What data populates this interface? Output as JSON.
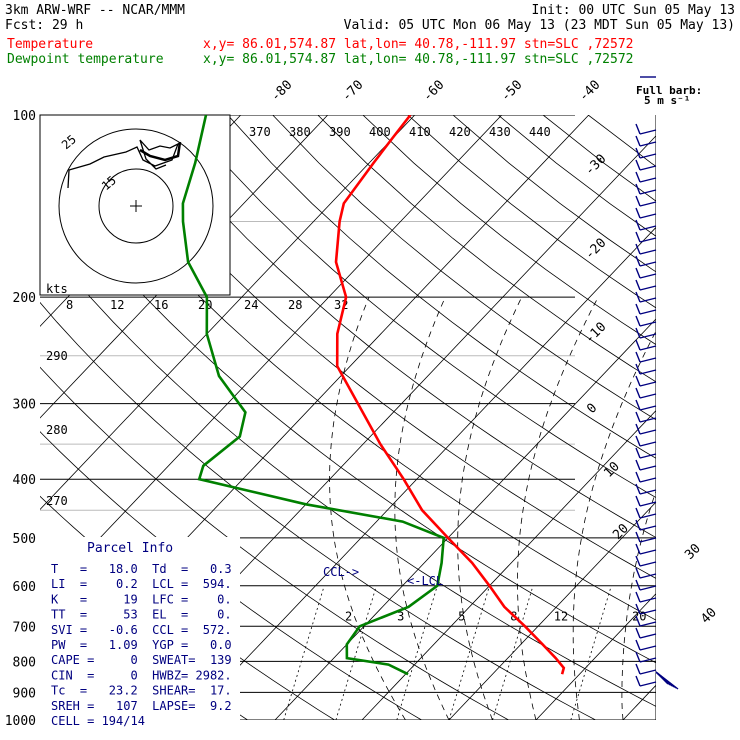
{
  "header": {
    "line1_left": "3km ARW-WRF -- NCAR/MMM",
    "line1_right": "Init: 00 UTC Sun 05 May 13",
    "line2_left": "Fcst:    29 h",
    "line2_right": "Valid: 05 UTC Mon 06 May 13 (23 MDT Sun 05 May 13)",
    "temp_label": "Temperature",
    "dew_label": "Dewpoint temperature",
    "temp_info": "x,y= 86.01,574.87    lat,lon= 40.78,-111.97   stn=SLC ,72572",
    "dew_info": "x,y= 86.01,574.87    lat,lon= 40.78,-111.97   stn=SLC ,72572",
    "colors": {
      "temperature": "#ff0000",
      "dewpoint": "#008000",
      "wind": "#000080",
      "parcel": "#000080"
    }
  },
  "barb_legend": {
    "title": "Full barb:",
    "value": "5 m s⁻¹"
  },
  "parcel_info": {
    "title": "Parcel Info",
    "rows": [
      "T   =   18.0  Td  =   0.3",
      "LI  =    0.2  LCL =  594.",
      "K   =     19  LFC =    0.",
      "TT  =     53  EL  =    0.",
      "SVI =   -0.6  CCL =  572.",
      "PW  =   1.09  YGP =   0.0",
      "CAPE =     0  SWEAT=  139",
      "CIN  =     0  HWBZ= 2982.",
      "Tc  =   23.2  SHEAR=  17.",
      "SREH =   107  LAPSE=  9.2",
      "CELL = 194/14"
    ]
  },
  "markers": {
    "ccl": "CCL->",
    "lcl": "<-LCL"
  },
  "hodograph": {
    "units": "kts",
    "ring_labels": [
      "25",
      "15"
    ]
  },
  "chart_data": {
    "type": "line",
    "diagram": "skew-T log-p",
    "y_axis": {
      "quantity": "pressure",
      "units": "hPa",
      "scale": "log",
      "range": [
        1000,
        100
      ],
      "ticks": [
        100,
        200,
        300,
        400,
        500,
        600,
        700,
        800,
        900,
        1000
      ]
    },
    "isotherm_labels": [
      -80,
      -70,
      -60,
      -50,
      -40,
      -30,
      -20,
      -10,
      0,
      10,
      20,
      30,
      40
    ],
    "theta_labels": [
      370,
      380,
      390,
      400,
      410,
      420,
      430,
      440
    ],
    "dry_adiabat_side_labels": [
      290,
      280,
      270
    ],
    "wind_speed_labels": [
      8,
      12,
      16,
      20,
      24,
      28,
      32
    ],
    "mixing_ratio_labels": [
      2,
      3,
      5,
      8,
      12,
      20
    ],
    "series": [
      {
        "name": "Temperature",
        "points": [
          [
            840,
            18.0
          ],
          [
            820,
            17.5
          ],
          [
            790,
            15.5
          ],
          [
            750,
            12.5
          ],
          [
            700,
            8.5
          ],
          [
            650,
            4.0
          ],
          [
            600,
            0.0
          ],
          [
            550,
            -4.5
          ],
          [
            500,
            -10.0
          ],
          [
            450,
            -16.0
          ],
          [
            400,
            -21.5
          ],
          [
            350,
            -28.0
          ],
          [
            300,
            -35.0
          ],
          [
            260,
            -41.5
          ],
          [
            230,
            -45.0
          ],
          [
            200,
            -48.0
          ],
          [
            175,
            -53.0
          ],
          [
            150,
            -57.0
          ],
          [
            140,
            -58.5
          ],
          [
            120,
            -59.5
          ],
          [
            110,
            -60.0
          ],
          [
            100,
            -60.5
          ]
        ]
      },
      {
        "name": "Dewpoint temperature",
        "points": [
          [
            840,
            0.3
          ],
          [
            810,
            -3.0
          ],
          [
            790,
            -8.5
          ],
          [
            750,
            -10.0
          ],
          [
            700,
            -10.5
          ],
          [
            650,
            -7.0
          ],
          [
            600,
            -6.0
          ],
          [
            550,
            -8.0
          ],
          [
            500,
            -10.5
          ],
          [
            470,
            -17.0
          ],
          [
            440,
            -30.0
          ],
          [
            400,
            -45.0
          ],
          [
            380,
            -46.0
          ],
          [
            340,
            -45.0
          ],
          [
            310,
            -47.0
          ],
          [
            270,
            -54.0
          ],
          [
            230,
            -60.0
          ],
          [
            200,
            -64.0
          ],
          [
            175,
            -70.0
          ],
          [
            150,
            -75.0
          ],
          [
            140,
            -77.0
          ],
          [
            120,
            -80.0
          ],
          [
            100,
            -84.0
          ]
        ]
      }
    ]
  }
}
